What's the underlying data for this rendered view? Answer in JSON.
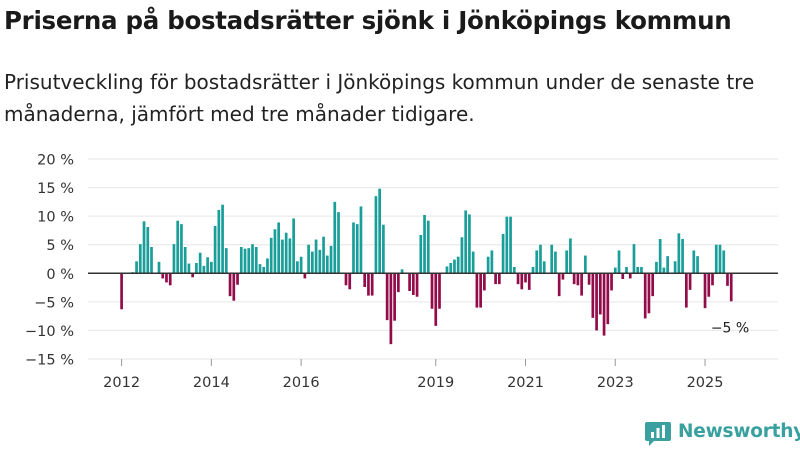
{
  "header": {
    "title": "Priserna på bostadsrätter sjönk i Jönköpings kommun",
    "subtitle": "Prisutveckling för bostadsrätter i Jönköpings kommun under de senaste tre månaderna, jämfört med tre månader tidigare."
  },
  "brand": {
    "name": "Newsworthy"
  },
  "colors": {
    "positive": "#1a9e9a",
    "negative": "#930c4a",
    "accent": "#3aa0a0"
  },
  "chart_data": {
    "type": "bar",
    "title": "Priserna på bostadsrätter sjönk i Jönköpings kommun",
    "xlabel": "",
    "ylabel": "",
    "ylim": [
      -15,
      20
    ],
    "yticks": [
      -15,
      -10,
      -5,
      0,
      5,
      10,
      15,
      20
    ],
    "ytick_labels": [
      "−15 %",
      "−10 %",
      "−5 %",
      "0 %",
      "5 %",
      "10 %",
      "15 %",
      "20 %"
    ],
    "xticks": [
      {
        "label": "2012",
        "year": 2012
      },
      {
        "label": "2014",
        "year": 2014
      },
      {
        "label": "2016",
        "year": 2016
      },
      {
        "label": "2019",
        "year": 2019
      },
      {
        "label": "2021",
        "year": 2021
      },
      {
        "label": "2023",
        "year": 2023
      },
      {
        "label": "2025",
        "year": 2025
      }
    ],
    "start": {
      "year": 2012,
      "month": 1
    },
    "unit": "%",
    "annotation": {
      "text": "−5 %",
      "target": "last"
    },
    "values": [
      -6.3,
      0,
      0,
      0.2,
      2.1,
      5.1,
      9.1,
      8.1,
      4.6,
      0,
      2.0,
      -0.9,
      -1.6,
      -2.1,
      5.1,
      9.2,
      8.6,
      4.6,
      1.7,
      -0.7,
      1.8,
      3.6,
      1.3,
      2.8,
      2.0,
      8.3,
      11.1,
      12.0,
      4.4,
      -4.0,
      -4.8,
      -2.0,
      4.6,
      4.3,
      4.4,
      5.1,
      4.6,
      1.6,
      1.1,
      2.6,
      6.2,
      7.7,
      8.9,
      5.9,
      7.1,
      6.1,
      9.6,
      2.1,
      2.9,
      -0.9,
      5.0,
      3.8,
      5.9,
      4.1,
      6.4,
      3.1,
      4.8,
      12.5,
      10.7,
      -0.1,
      -2.1,
      -2.8,
      8.9,
      8.6,
      11.7,
      -2.4,
      -3.9,
      -3.9,
      13.5,
      14.8,
      8.5,
      -8.2,
      -12.4,
      -8.3,
      -3.3,
      0.7,
      -0.1,
      -3.1,
      -3.8,
      -4.1,
      6.7,
      10.2,
      9.2,
      -6.2,
      -9.2,
      -6.2,
      0,
      1.2,
      1.8,
      2.4,
      2.9,
      6.3,
      11.0,
      10.3,
      3.8,
      -6.0,
      -6.0,
      -3.0,
      2.9,
      4.0,
      -1.9,
      -1.9,
      6.9,
      9.9,
      9.9,
      1.1,
      -1.9,
      -2.8,
      -1.6,
      -2.9,
      1.1,
      4.0,
      5.0,
      2.1,
      0,
      5.0,
      3.8,
      -4.0,
      -1.1,
      4.0,
      6.1,
      -1.9,
      -2.1,
      -3.9,
      3.1,
      -2.0,
      -7.8,
      -10.0,
      -7.2,
      -10.9,
      -8.9,
      -3.0,
      1.0,
      4.0,
      -1.0,
      1.1,
      -0.9,
      5.1,
      1.1,
      1.1,
      -7.9,
      -7.0,
      -4.0,
      2.0,
      6.0,
      1.0,
      3.0,
      0,
      2.1,
      7.0,
      6.0,
      -6.0,
      -2.9,
      4.0,
      3.0,
      0,
      -6.1,
      -4.1,
      -2.1,
      5.0,
      5.0,
      4.0,
      -2.2,
      -4.9
    ]
  }
}
